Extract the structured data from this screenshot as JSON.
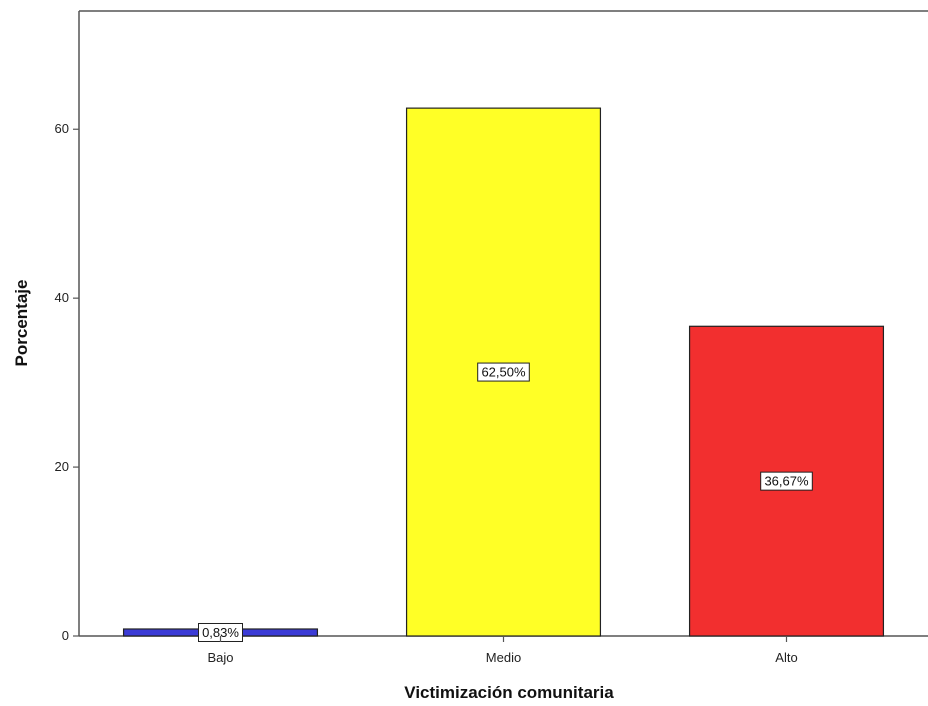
{
  "chart_data": {
    "type": "bar",
    "categories": [
      "Bajo",
      "Medio",
      "Alto"
    ],
    "values": [
      0.83,
      62.5,
      36.67
    ],
    "data_labels": [
      "0,83%",
      "62,50%",
      "36,67%"
    ],
    "colors": [
      "#3b3bd6",
      "#ffff26",
      "#f22f2f"
    ],
    "xlabel": "Victimización comunitaria",
    "ylabel": "Porcentaje",
    "ylim": [
      0,
      74
    ],
    "yticks": [
      0,
      20,
      40,
      60
    ],
    "grid": false,
    "legend": "none"
  }
}
